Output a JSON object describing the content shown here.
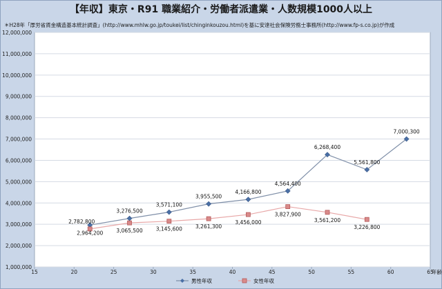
{
  "chart_data": {
    "type": "line",
    "title": "【年収】東京・R91 職業紹介・労働者派遣業・人数規模1000人以上",
    "subtitle": "＊H28年「厚労省賃金構造基本統計調査」(http://www.mhlw.go.jp/toukei/list/chinginkouzou.html)を基に安達社会保険労務士事務所(http://www.fp-s.co.jp)が作成",
    "xlabel": "年齢",
    "ylabel": "",
    "xlim": [
      15,
      65
    ],
    "ylim": [
      1000000,
      12000000
    ],
    "x_ticks": [
      "15",
      "20",
      "25",
      "30",
      "35",
      "40",
      "45",
      "50",
      "55",
      "60",
      "65"
    ],
    "y_ticks": [
      "1,000,000",
      "2,000,000",
      "3,000,000",
      "4,000,000",
      "5,000,000",
      "6,000,000",
      "7,000,000",
      "8,000,000",
      "9,000,000",
      "10,000,000",
      "11,000,000",
      "12,000,000"
    ],
    "grid": true,
    "legend_position": "bottom",
    "series": [
      {
        "name": "男性年収",
        "color": "#7f8fa8",
        "marker_color": "#4a6fa5",
        "marker": "diamond",
        "x": [
          22,
          27,
          32,
          37,
          42,
          47,
          52,
          57,
          62
        ],
        "values": [
          2964200,
          3276500,
          3571100,
          3955500,
          4166800,
          4564400,
          6268400,
          5561800,
          7000300
        ],
        "labels": [
          "2,964,200",
          "3,276,500",
          "3,571,100",
          "3,955,500",
          "4,166,800",
          "4,564,400",
          "6,268,400",
          "5,561,800",
          "7,000,300"
        ]
      },
      {
        "name": "女性年収",
        "color": "#e8a7a7",
        "marker_color": "#d98a8a",
        "marker": "square",
        "x": [
          22,
          27,
          32,
          37,
          42,
          47,
          52,
          57
        ],
        "values": [
          2782800,
          3065500,
          3145600,
          3261300,
          3456000,
          3827900,
          3561200,
          3226800
        ],
        "labels": [
          "2,782,800",
          "3,065,500",
          "3,145,600",
          "3,261,300",
          "3,456,000",
          "3,827,900",
          "3,561,200",
          "3,226,800"
        ]
      }
    ]
  }
}
